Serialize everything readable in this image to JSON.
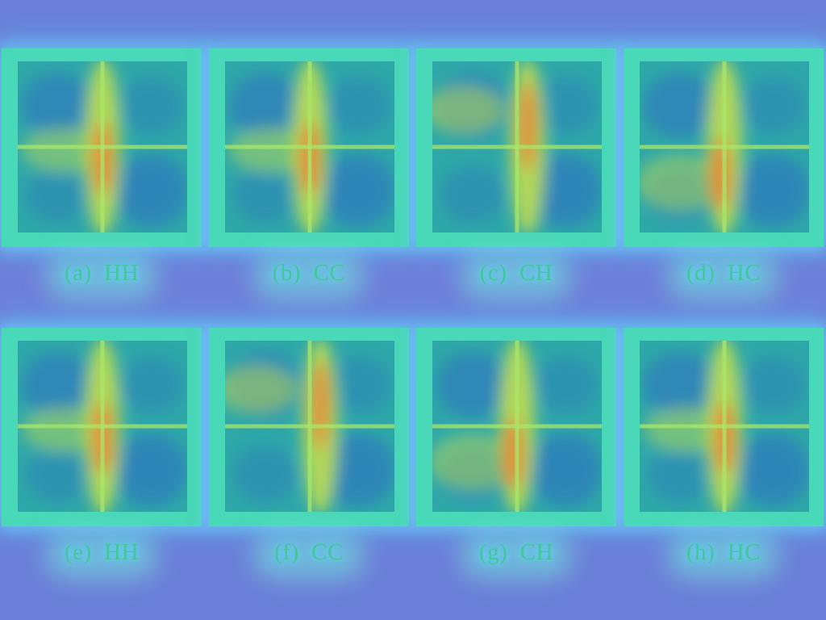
{
  "rows": [
    {
      "panels": [
        {
          "letter": "(a)",
          "label": "HH",
          "heat": "focus-center"
        },
        {
          "letter": "(b)",
          "label": "CC",
          "heat": "focus-center"
        },
        {
          "letter": "(c)",
          "label": "CH",
          "heat": "focus-vertical"
        },
        {
          "letter": "(d)",
          "label": "HC",
          "heat": "focus-lower-center"
        }
      ]
    },
    {
      "panels": [
        {
          "letter": "(e)",
          "label": "HH",
          "heat": "focus-center"
        },
        {
          "letter": "(f)",
          "label": "CC",
          "heat": "focus-vertical"
        },
        {
          "letter": "(g)",
          "label": "CH",
          "heat": "focus-lower-center"
        },
        {
          "letter": "(h)",
          "label": "HC",
          "heat": "focus-center"
        }
      ]
    }
  ],
  "colors": {
    "background": "#6b7fd8",
    "panel": "#49d8b8",
    "cold": "#2f6fc2",
    "mid": "#2ea7a8",
    "warm": "#c8e04a",
    "hot": "#e8803a",
    "caption": "#41c79b"
  }
}
